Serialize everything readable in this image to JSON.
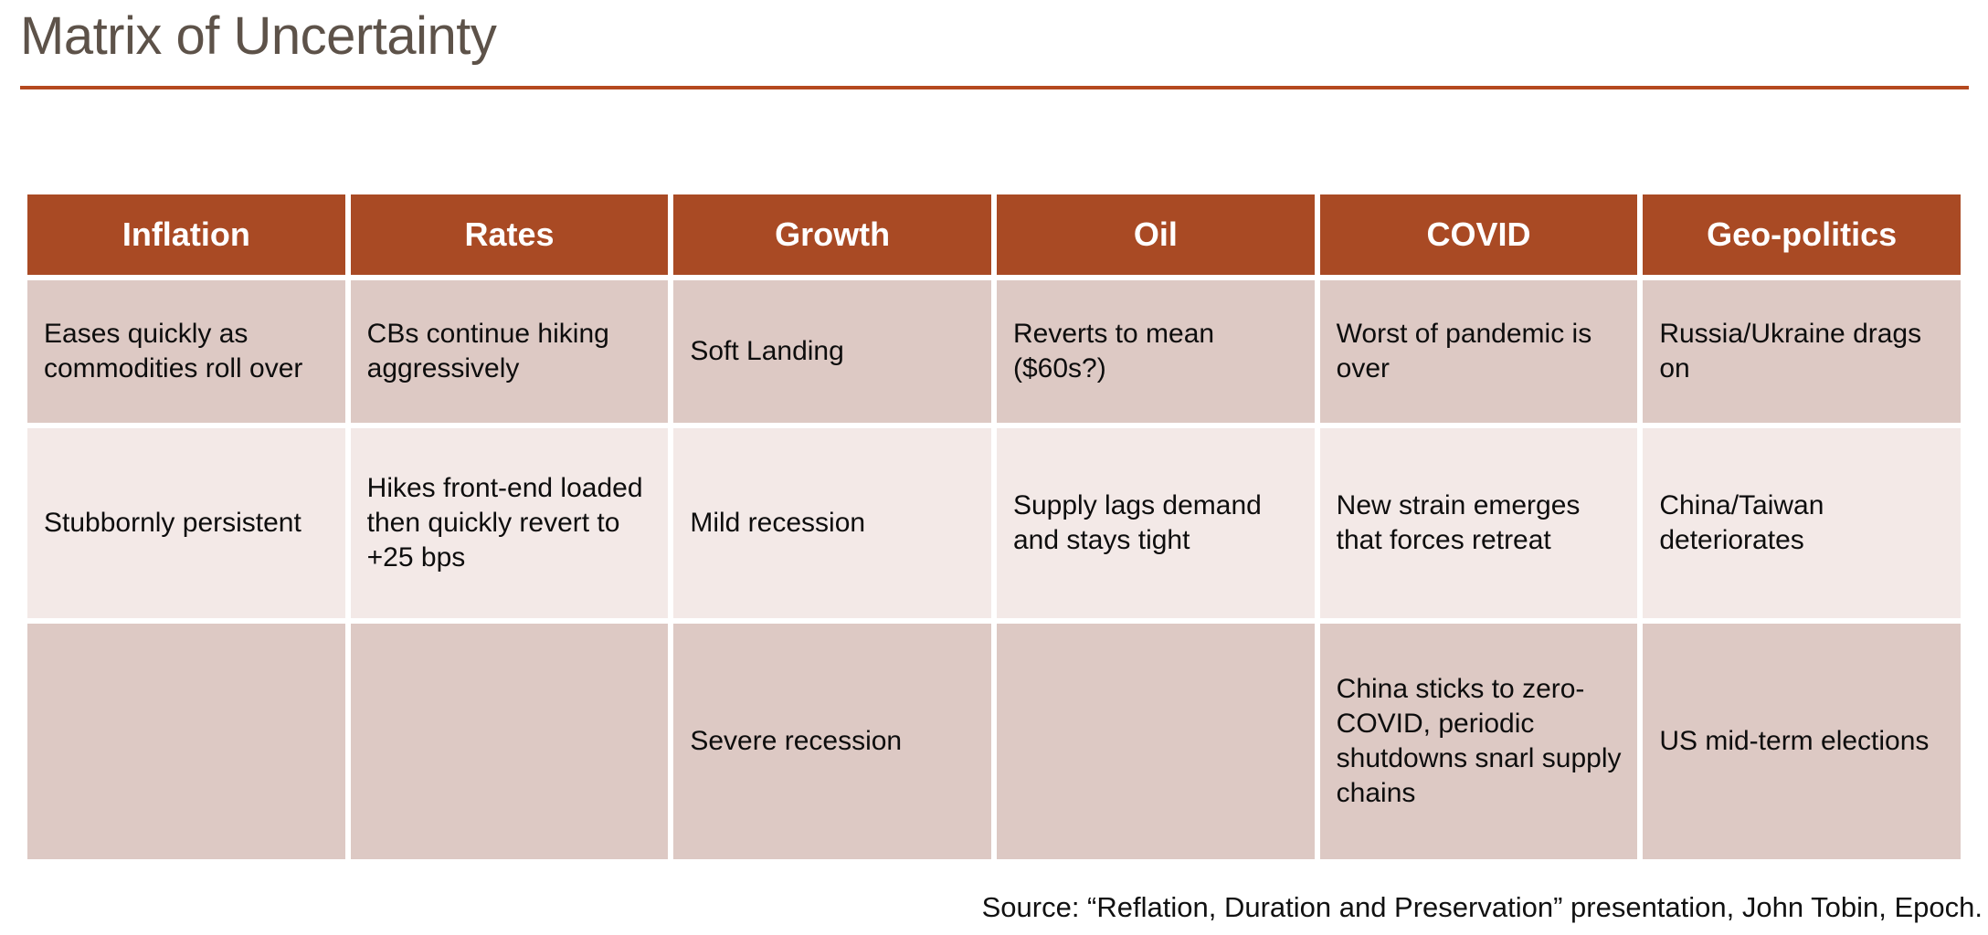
{
  "title": "Matrix of Uncertainty",
  "colors": {
    "header_bg": "#a94a24",
    "title_rule": "#b5491f",
    "title_text": "#5d5249",
    "row_dark": "#ddc9c4",
    "row_light": "#f3e9e7"
  },
  "table": {
    "headers": [
      "Inflation",
      "Rates",
      "Growth",
      "Oil",
      "COVID",
      "Geo-politics"
    ],
    "rows": [
      [
        "Eases quickly as commodities roll over",
        "CBs continue hiking aggressively",
        "Soft Landing",
        "Reverts to mean ($60s?)",
        "Worst of pandemic is over",
        "Russia/Ukraine drags on"
      ],
      [
        "Stubbornly persistent",
        "Hikes front-end loaded then quickly revert to +25 bps",
        "Mild recession",
        "Supply lags demand and stays tight",
        "New strain emerges that forces retreat",
        "China/Taiwan deteriorates"
      ],
      [
        "",
        "",
        "Severe recession",
        "",
        "China sticks to zero-COVID, periodic shutdowns snarl supply chains",
        "US mid-term elections"
      ]
    ]
  },
  "source": "Source: “Reflation, Duration and Preservation” presentation, John Tobin, Epoch."
}
